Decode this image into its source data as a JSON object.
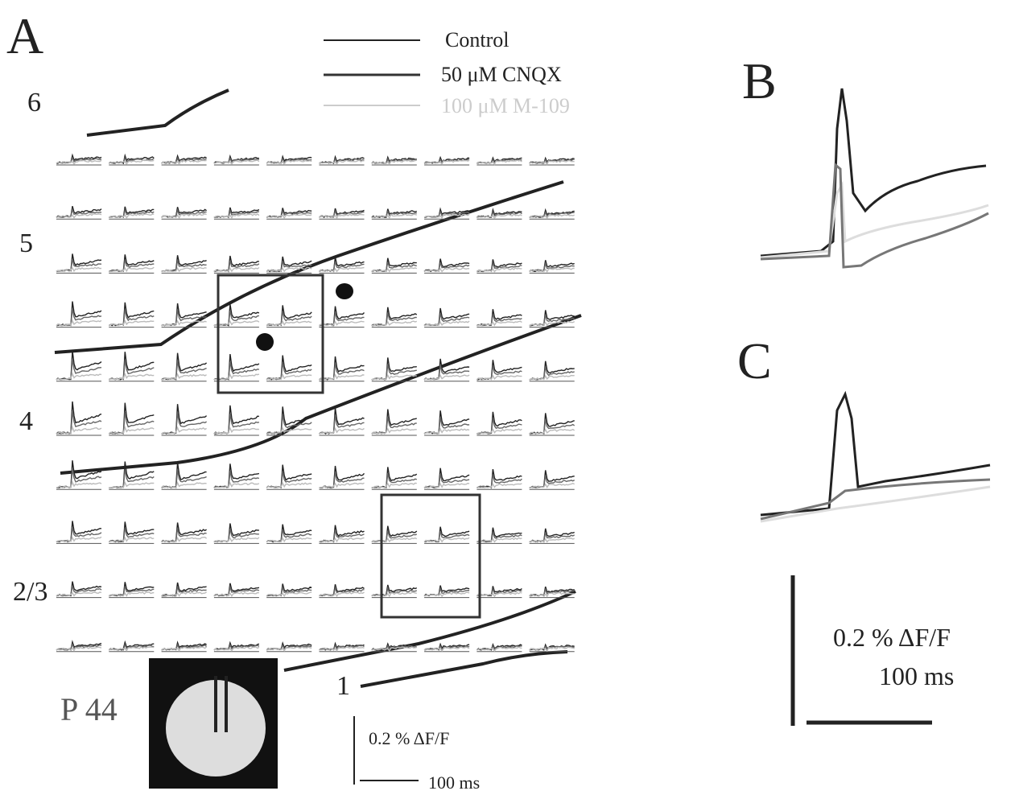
{
  "panels": {
    "a": "A",
    "b": "B",
    "c": "C"
  },
  "legend": [
    {
      "label": "Control"
    },
    {
      "label": "50 μM CNQX"
    },
    {
      "label": "100 μM M-109"
    }
  ],
  "layers": [
    "6",
    "5",
    "4",
    "2/3",
    "1"
  ],
  "age": "P 44",
  "scale_a": {
    "amplitude": "0.2 % ΔF/F",
    "time": "100 ms"
  },
  "scale_bc": {
    "amplitude": "0.2 % ΔF/F",
    "time": "100 ms"
  }
}
